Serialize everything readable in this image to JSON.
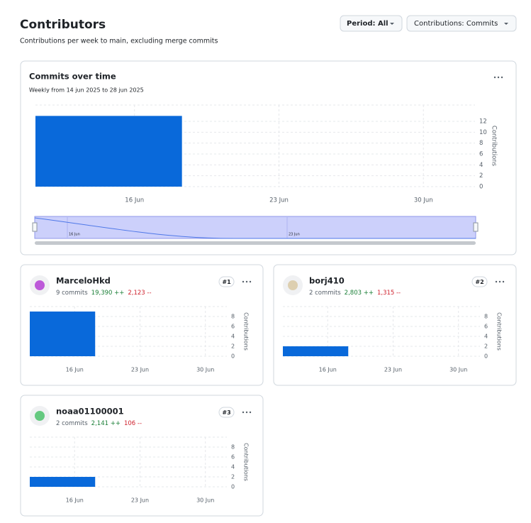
{
  "header": {
    "title": "Contributors",
    "subtitle": "Contributions per week to main, excluding merge commits",
    "period_button": "Period: All",
    "contributions_button": "Contributions: Commits"
  },
  "overview": {
    "title": "Commits over time",
    "subtitle": "Weekly from 14 jun 2025 to 28 jun 2025",
    "chart": {
      "type": "bar",
      "y_label": "Contributions",
      "color": "#0969da",
      "grid": true,
      "xlim": [
        11.2,
        32.5
      ],
      "xticks": [
        {
          "value": 16,
          "label": "16 Jun"
        },
        {
          "value": 23,
          "label": "23 Jun"
        },
        {
          "value": 30,
          "label": "30 Jun"
        }
      ],
      "ylim": [
        0,
        15
      ],
      "yticks": [
        0,
        2,
        4,
        6,
        8,
        10,
        12
      ],
      "bins": [
        11.2,
        18.3
      ],
      "values": [
        13
      ]
    },
    "navigator": {
      "labels": [
        "16 Jun",
        "23 Jun"
      ]
    }
  },
  "contributors": [
    {
      "name": "MarceloHkd",
      "commits": "9 commits",
      "additions": "19,390 ++",
      "deletions": "2,123 --",
      "rank": "#1",
      "chart": {
        "type": "bar",
        "y_label": "Contributions",
        "color": "#0969da",
        "grid": true,
        "xlim": [
          11.2,
          32.3
        ],
        "xticks": [
          {
            "value": 16,
            "label": "16 Jun"
          },
          {
            "value": 23,
            "label": "23 Jun"
          },
          {
            "value": 30,
            "label": "30 Jun"
          }
        ],
        "ylim": [
          0,
          10
        ],
        "yticks": [
          0,
          2,
          4,
          6,
          8
        ],
        "bins": [
          11.2,
          18.2
        ],
        "values": [
          9
        ]
      }
    },
    {
      "name": "borj410",
      "commits": "2 commits",
      "additions": "2,803 ++",
      "deletions": "1,315 --",
      "rank": "#2",
      "chart": {
        "type": "bar",
        "y_label": "Contributions",
        "color": "#0969da",
        "grid": true,
        "xlim": [
          11.2,
          32.3
        ],
        "xticks": [
          {
            "value": 16,
            "label": "16 Jun"
          },
          {
            "value": 23,
            "label": "23 Jun"
          },
          {
            "value": 30,
            "label": "30 Jun"
          }
        ],
        "ylim": [
          0,
          10
        ],
        "yticks": [
          0,
          2,
          4,
          6,
          8
        ],
        "bins": [
          11.2,
          18.2
        ],
        "values": [
          2
        ]
      }
    },
    {
      "name": "noaa01100001",
      "commits": "2 commits",
      "additions": "2,141 ++",
      "deletions": "106 --",
      "rank": "#3",
      "chart": {
        "type": "bar",
        "y_label": "Contributions",
        "color": "#0969da",
        "grid": true,
        "xlim": [
          11.2,
          32.3
        ],
        "xticks": [
          {
            "value": 16,
            "label": "16 Jun"
          },
          {
            "value": 23,
            "label": "23 Jun"
          },
          {
            "value": 30,
            "label": "30 Jun"
          }
        ],
        "ylim": [
          0,
          10
        ],
        "yticks": [
          0,
          2,
          4,
          6,
          8
        ],
        "bins": [
          11.2,
          18.2
        ],
        "values": [
          2
        ]
      }
    }
  ]
}
